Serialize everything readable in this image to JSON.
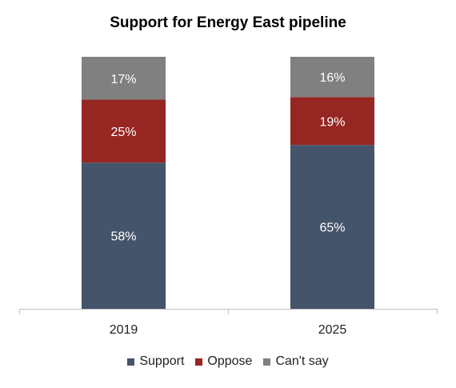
{
  "chart_data": {
    "type": "bar",
    "stacked": true,
    "title": "Support for Energy East pipeline",
    "categories": [
      "2019",
      "2025"
    ],
    "series": [
      {
        "name": "Support",
        "values": [
          58,
          65
        ],
        "labels": [
          "58%",
          "65%"
        ],
        "color": "#44546a"
      },
      {
        "name": "Oppose",
        "values": [
          25,
          19
        ],
        "labels": [
          "25%",
          "19%"
        ],
        "color": "#962621"
      },
      {
        "name": "Can't say",
        "values": [
          17,
          16
        ],
        "labels": [
          "17%",
          "16%"
        ],
        "color": "#808080"
      }
    ],
    "ylim": [
      0,
      100
    ],
    "grid": false,
    "legend_position": "bottom",
    "axis_color": "#bfbfbf",
    "label_color": "#ffffff"
  }
}
